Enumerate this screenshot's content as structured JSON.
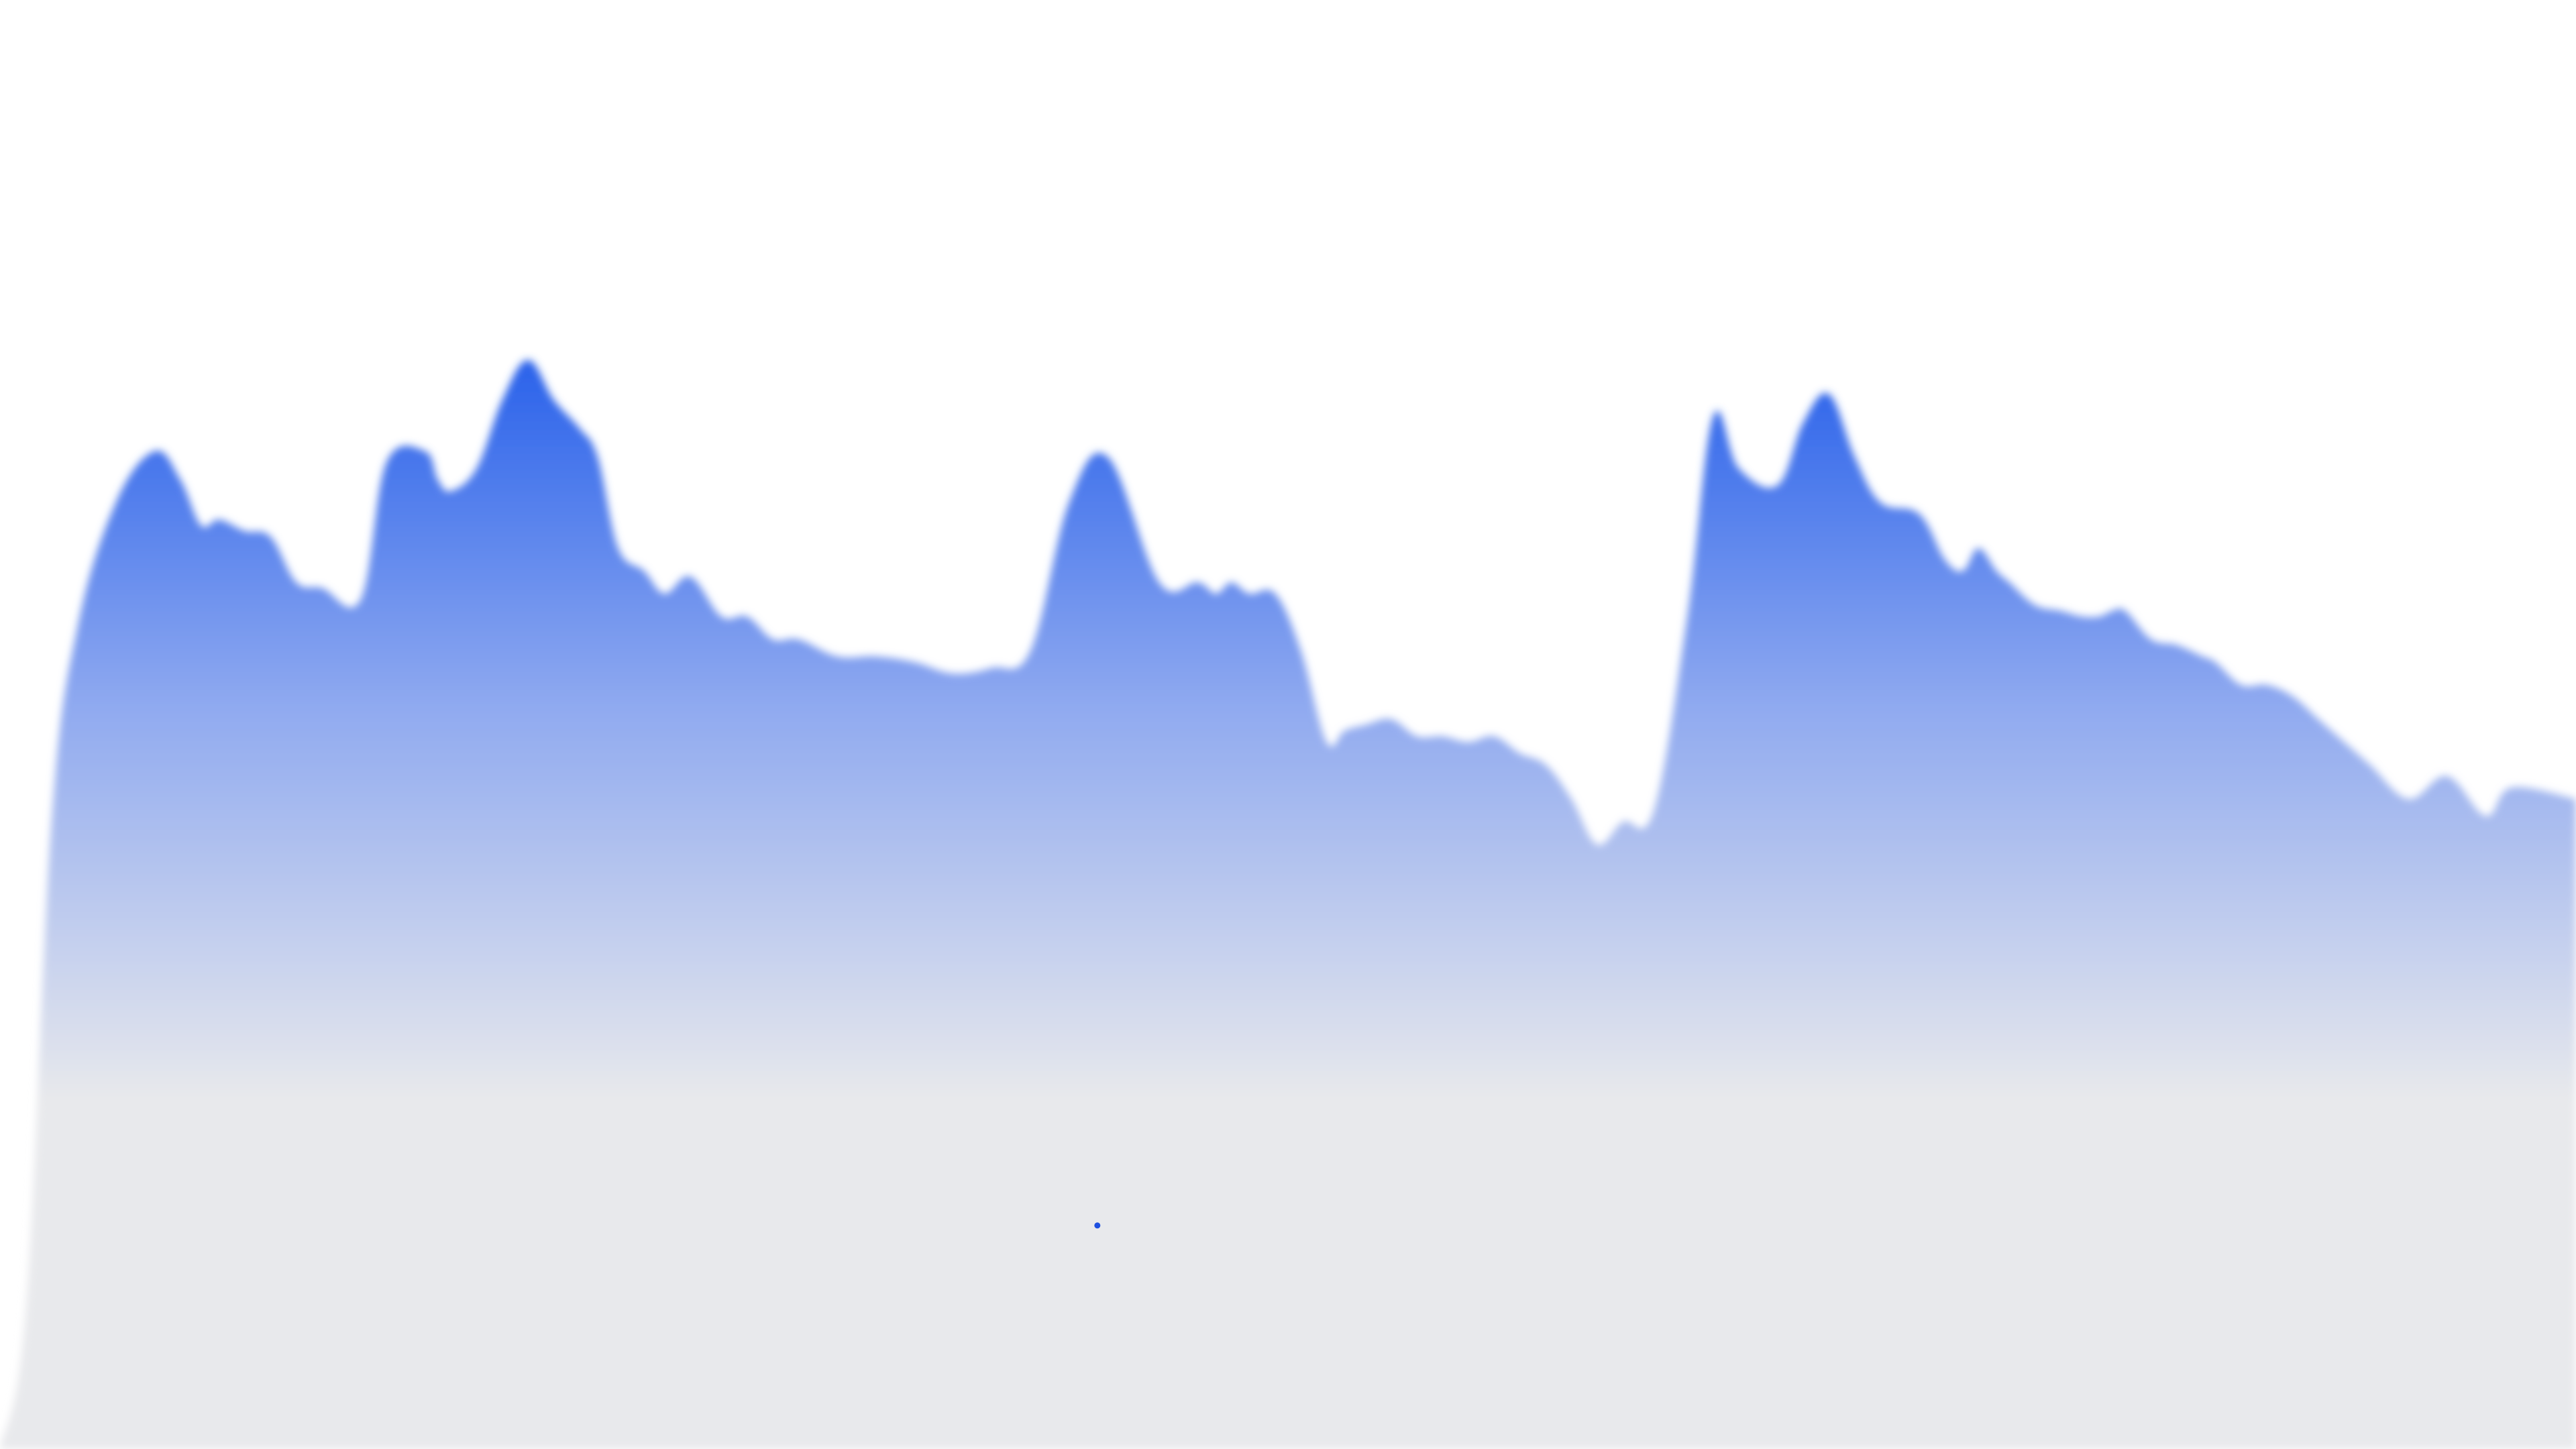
{
  "colors": {
    "background": "#ffffff",
    "fill_top": "#2a62ea",
    "fill_mid": "#90aaf0",
    "fill_base": "#e8e9ec",
    "point": "#1d4fe0"
  },
  "chart_data": {
    "type": "area",
    "title": "",
    "xlabel": "",
    "ylabel": "",
    "grid": false,
    "legend": "none",
    "xlim": [
      0,
      1
    ],
    "ylim": [
      0,
      1
    ],
    "x": [
      0.0,
      0.01,
      0.02,
      0.03,
      0.045,
      0.06,
      0.07,
      0.078,
      0.085,
      0.095,
      0.105,
      0.115,
      0.125,
      0.14,
      0.15,
      0.165,
      0.17,
      0.175,
      0.185,
      0.195,
      0.205,
      0.215,
      0.225,
      0.232,
      0.24,
      0.25,
      0.258,
      0.268,
      0.28,
      0.29,
      0.3,
      0.31,
      0.325,
      0.34,
      0.355,
      0.37,
      0.385,
      0.4,
      0.415,
      0.43,
      0.45,
      0.465,
      0.472,
      0.478,
      0.485,
      0.495,
      0.505,
      0.515,
      0.522,
      0.53,
      0.54,
      0.55,
      0.56,
      0.57,
      0.58,
      0.59,
      0.6,
      0.61,
      0.62,
      0.63,
      0.642,
      0.655,
      0.665,
      0.675,
      0.69,
      0.7,
      0.71,
      0.72,
      0.73,
      0.745,
      0.755,
      0.762,
      0.768,
      0.775,
      0.78,
      0.79,
      0.8,
      0.808,
      0.815,
      0.82,
      0.825,
      0.835,
      0.845,
      0.855,
      0.86,
      0.87,
      0.88,
      0.89,
      0.9,
      0.91,
      0.92,
      0.935,
      0.95,
      0.965,
      0.975,
      1.0
    ],
    "values": [
      0.0,
      0.12,
      0.55,
      0.72,
      0.83,
      0.875,
      0.85,
      0.81,
      0.815,
      0.805,
      0.8,
      0.76,
      0.755,
      0.745,
      0.865,
      0.875,
      0.85,
      0.84,
      0.86,
      0.92,
      0.955,
      0.92,
      0.895,
      0.87,
      0.79,
      0.77,
      0.75,
      0.765,
      0.73,
      0.73,
      0.71,
      0.71,
      0.695,
      0.695,
      0.69,
      0.68,
      0.685,
      0.7,
      0.83,
      0.87,
      0.76,
      0.76,
      0.75,
      0.76,
      0.75,
      0.75,
      0.7,
      0.62,
      0.63,
      0.635,
      0.64,
      0.625,
      0.625,
      0.62,
      0.625,
      0.61,
      0.6,
      0.57,
      0.53,
      0.55,
      0.56,
      0.73,
      0.905,
      0.86,
      0.845,
      0.9,
      0.925,
      0.87,
      0.83,
      0.82,
      0.78,
      0.77,
      0.79,
      0.77,
      0.76,
      0.74,
      0.735,
      0.73,
      0.73,
      0.735,
      0.735,
      0.71,
      0.705,
      0.695,
      0.69,
      0.67,
      0.67,
      0.66,
      0.64,
      0.62,
      0.6,
      0.57,
      0.59,
      0.555,
      0.58,
      0.57
    ],
    "marker_points": [
      {
        "x": 0.426,
        "y": 0.196
      }
    ]
  }
}
